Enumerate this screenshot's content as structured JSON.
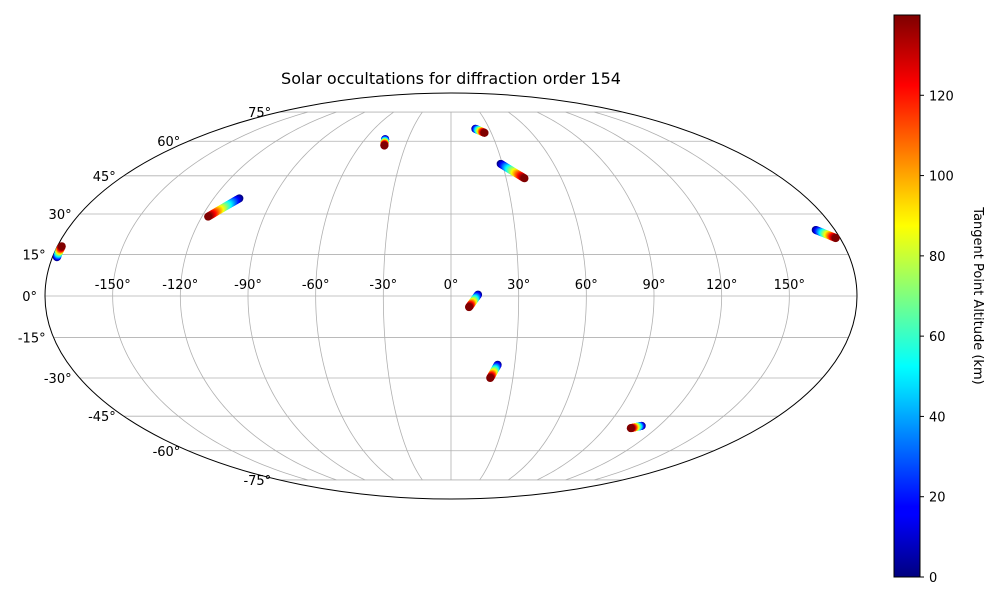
{
  "chart_data": {
    "type": "scatter",
    "projection": "mollweide",
    "title": "Solar occultations for diffraction order 154",
    "grid": true,
    "lon_ticks": [
      -150,
      -120,
      -90,
      -60,
      -30,
      0,
      30,
      60,
      90,
      120,
      150
    ],
    "lon_tick_labels": [
      "-150°",
      "-120°",
      "-90°",
      "-60°",
      "-30°",
      "0°",
      "30°",
      "60°",
      "90°",
      "120°",
      "150°"
    ],
    "lat_ticks": [
      -75,
      -60,
      -45,
      -30,
      -15,
      0,
      15,
      30,
      45,
      60,
      75
    ],
    "lat_tick_labels": [
      "-75°",
      "-60°",
      "-45°",
      "-30°",
      "-15°",
      "0°",
      "15°",
      "30°",
      "45°",
      "60°",
      "75°"
    ],
    "colorbar": {
      "label": "Tangent Point Altitude (km)",
      "colormap": "jet",
      "range": [
        0,
        140
      ],
      "ticks": [
        0,
        20,
        40,
        60,
        80,
        100,
        120
      ],
      "tick_labels": [
        "0",
        "20",
        "40",
        "60",
        "80",
        "100",
        "120"
      ],
      "placement": "right"
    },
    "tracks": [
      {
        "lon_low": -178,
        "lat_low": 14,
        "lon_high": -178,
        "lat_high": 18
      },
      {
        "lon_low": -107,
        "lat_low": 36,
        "lon_high": -117,
        "lat_high": 29
      },
      {
        "lon_low": -46,
        "lat_low": 61,
        "lon_high": -44,
        "lat_high": 58
      },
      {
        "lon_low": 19,
        "lat_low": 66,
        "lon_high": 25,
        "lat_high": 64
      },
      {
        "lon_low": 29,
        "lat_low": 50,
        "lon_high": 40,
        "lat_high": 44
      },
      {
        "lon_low": 171,
        "lat_low": 24,
        "lon_high": 178,
        "lat_high": 21
      },
      {
        "lon_low": 12,
        "lat_low": 0.5,
        "lon_high": 8,
        "lat_high": -4
      },
      {
        "lon_low": 22,
        "lat_low": -25,
        "lon_high": 19,
        "lat_high": -30
      },
      {
        "lon_low": 110,
        "lat_low": -49,
        "lon_high": 105,
        "lat_high": -50
      }
    ]
  }
}
